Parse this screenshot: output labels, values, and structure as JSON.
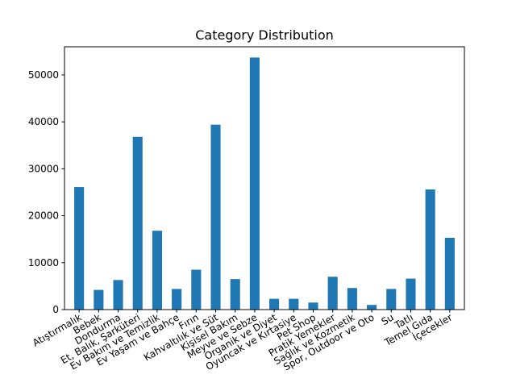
{
  "chart_data": {
    "type": "bar",
    "title": "Category Distribution",
    "xlabel": "",
    "ylabel": "",
    "ylim": [
      0,
      56000
    ],
    "yticks": [
      0,
      10000,
      20000,
      30000,
      40000,
      50000
    ],
    "grid": false,
    "bar_color": "#1f77b4",
    "categories": [
      "Atıştırmalık",
      "Bebek",
      "Dondurma",
      "Et, Balık, Şarküteri",
      "Ev Bakım ve Temizlik",
      "Ev Yaşam ve Bahçe",
      "Fırın",
      "Kahvaltılık ve Süt",
      "Kişisel Bakım",
      "Meyve ve Sebze",
      "Organik ve Diyet",
      "Oyuncak ve Kırtasiye",
      "Pet Shop",
      "Pratik Yemekler",
      "Sağlık ve Kozmetik",
      "Spor, Outdoor ve Oto",
      "Su",
      "Tatlı",
      "Temel Gıda",
      "İçecekler"
    ],
    "values": [
      26100,
      4200,
      6300,
      36800,
      16800,
      4400,
      8500,
      39400,
      6500,
      53700,
      2300,
      2300,
      1500,
      7000,
      4600,
      1000,
      4400,
      6600,
      25600,
      15300
    ]
  }
}
